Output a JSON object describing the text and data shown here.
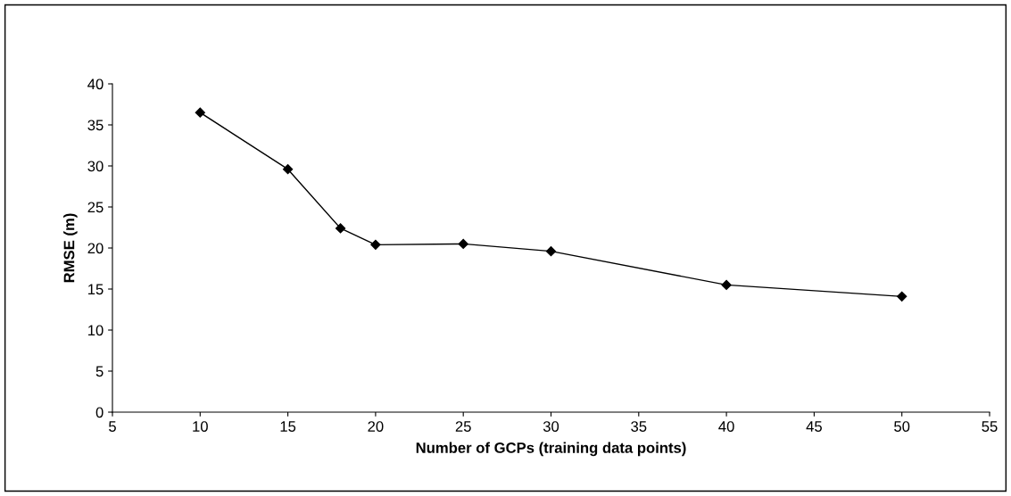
{
  "chart_data": {
    "type": "line",
    "xlabel": "Number of GCPs (training data points)",
    "ylabel": "RMSE (m)",
    "x": [
      10,
      15,
      18,
      20,
      25,
      30,
      40,
      50
    ],
    "series": [
      {
        "color": "#000000",
        "values": [
          36.5,
          29.6,
          22.4,
          20.4,
          20.5,
          19.6,
          15.5,
          14.1
        ]
      }
    ],
    "xlim": [
      5,
      55
    ],
    "xticks": [
      5,
      10,
      15,
      20,
      25,
      30,
      35,
      40,
      45,
      50,
      55
    ],
    "ylim": [
      0,
      40
    ],
    "yticks": [
      0,
      5,
      10,
      15,
      20,
      25,
      30,
      35,
      40
    ],
    "marker": "diamond",
    "line_style": "solid",
    "grid": false,
    "legend": false
  }
}
